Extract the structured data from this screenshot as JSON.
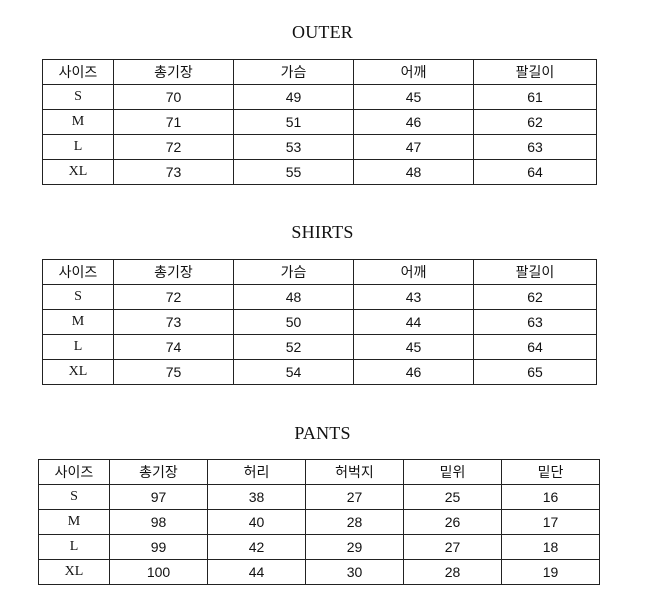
{
  "outer": {
    "title": "OUTER",
    "headers": [
      "사이즈",
      "총기장",
      "가슴",
      "어깨",
      "팔길이"
    ],
    "rows": [
      [
        "S",
        "70",
        "49",
        "45",
        "61"
      ],
      [
        "M",
        "71",
        "51",
        "46",
        "62"
      ],
      [
        "L",
        "72",
        "53",
        "47",
        "63"
      ],
      [
        "XL",
        "73",
        "55",
        "48",
        "64"
      ]
    ]
  },
  "shirts": {
    "title": "SHIRTS",
    "headers": [
      "사이즈",
      "총기장",
      "가슴",
      "어깨",
      "팔길이"
    ],
    "rows": [
      [
        "S",
        "72",
        "48",
        "43",
        "62"
      ],
      [
        "M",
        "73",
        "50",
        "44",
        "63"
      ],
      [
        "L",
        "74",
        "52",
        "45",
        "64"
      ],
      [
        "XL",
        "75",
        "54",
        "46",
        "65"
      ]
    ]
  },
  "pants": {
    "title": "PANTS",
    "headers": [
      "사이즈",
      "총기장",
      "허리",
      "허벅지",
      "밑위",
      "밑단"
    ],
    "rows": [
      [
        "S",
        "97",
        "38",
        "27",
        "25",
        "16"
      ],
      [
        "M",
        "98",
        "40",
        "28",
        "26",
        "17"
      ],
      [
        "L",
        "99",
        "42",
        "29",
        "27",
        "18"
      ],
      [
        "XL",
        "100",
        "44",
        "30",
        "28",
        "19"
      ]
    ]
  }
}
